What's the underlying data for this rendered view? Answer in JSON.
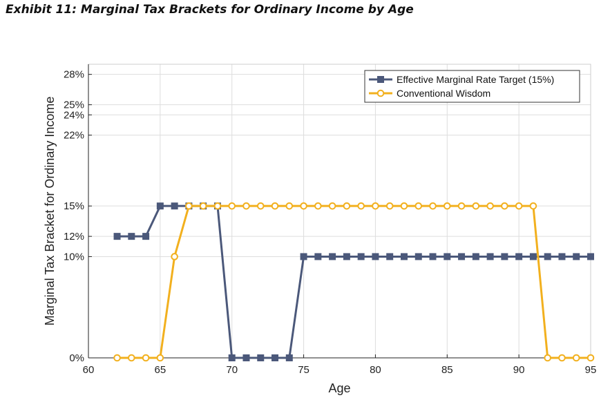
{
  "chart_data": {
    "type": "line",
    "title": "Exhibit 11: Marginal Tax Brackets for Ordinary Income by Age",
    "xlabel": "Age",
    "ylabel": "Marginal Tax Bracket for Ordinary Income",
    "xlim": [
      60,
      95
    ],
    "ylim": [
      0,
      29
    ],
    "xticks": [
      60,
      65,
      70,
      75,
      80,
      85,
      90,
      95
    ],
    "yticks": [
      0,
      10,
      12,
      15,
      22,
      24,
      25,
      28
    ],
    "ytick_labels": [
      "0%",
      "10%",
      "12%",
      "15%",
      "22%",
      "24%",
      "25%",
      "28%"
    ],
    "grid": true,
    "legend_position": "top-right",
    "x": [
      62,
      63,
      64,
      65,
      66,
      67,
      68,
      69,
      70,
      71,
      72,
      73,
      74,
      75,
      76,
      77,
      78,
      79,
      80,
      81,
      82,
      83,
      84,
      85,
      86,
      87,
      88,
      89,
      90,
      91,
      92,
      93,
      94,
      95
    ],
    "series": [
      {
        "name": "Effective Marginal Rate Target (15%)",
        "color": "#4b587a",
        "marker": "square",
        "values": [
          12,
          12,
          12,
          15,
          15,
          15,
          15,
          15,
          0,
          0,
          0,
          0,
          0,
          10,
          10,
          10,
          10,
          10,
          10,
          10,
          10,
          10,
          10,
          10,
          10,
          10,
          10,
          10,
          10,
          10,
          10,
          10,
          10,
          10
        ]
      },
      {
        "name": "Conventional Wisdom",
        "color": "#f2b01e",
        "marker": "circle",
        "values": [
          0,
          0,
          0,
          0,
          10,
          15,
          15,
          15,
          15,
          15,
          15,
          15,
          15,
          15,
          15,
          15,
          15,
          15,
          15,
          15,
          15,
          15,
          15,
          15,
          15,
          15,
          15,
          15,
          15,
          15,
          0,
          0,
          0,
          0
        ]
      }
    ]
  }
}
